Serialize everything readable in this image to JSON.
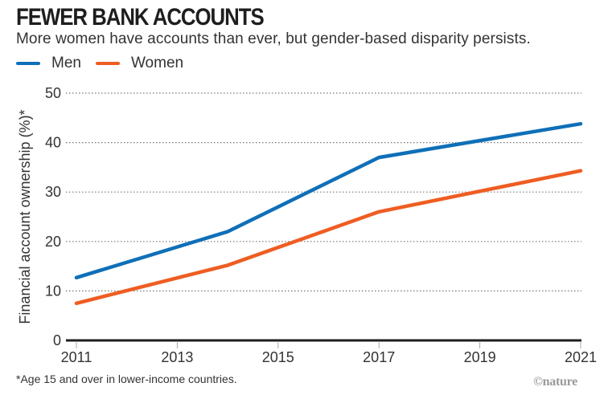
{
  "chart_data": {
    "type": "line",
    "title": "FEWER BANK ACCOUNTS",
    "subtitle": "More women have accounts than ever, but gender-based disparity persists.",
    "xlabel": "",
    "ylabel": "Financial account ownership (%)*",
    "xlim": [
      2011,
      2021
    ],
    "ylim": [
      0,
      50
    ],
    "x_ticks": [
      2011,
      2013,
      2015,
      2017,
      2019,
      2021
    ],
    "y_ticks": [
      0,
      10,
      20,
      30,
      40,
      50
    ],
    "grid": "horizontal-dotted",
    "legend_position": "top-left",
    "series": [
      {
        "name": "Men",
        "color": "#0f6fb8",
        "x": [
          2011,
          2014,
          2017,
          2021
        ],
        "values": [
          12.7,
          22,
          37,
          43.8
        ]
      },
      {
        "name": "Women",
        "color": "#ef5d22",
        "x": [
          2011,
          2014,
          2017,
          2021
        ],
        "values": [
          7.5,
          15.2,
          26,
          34.3
        ]
      }
    ],
    "footnote": "*Age 15 and over in lower-income countries.",
    "credit": "©nature"
  }
}
